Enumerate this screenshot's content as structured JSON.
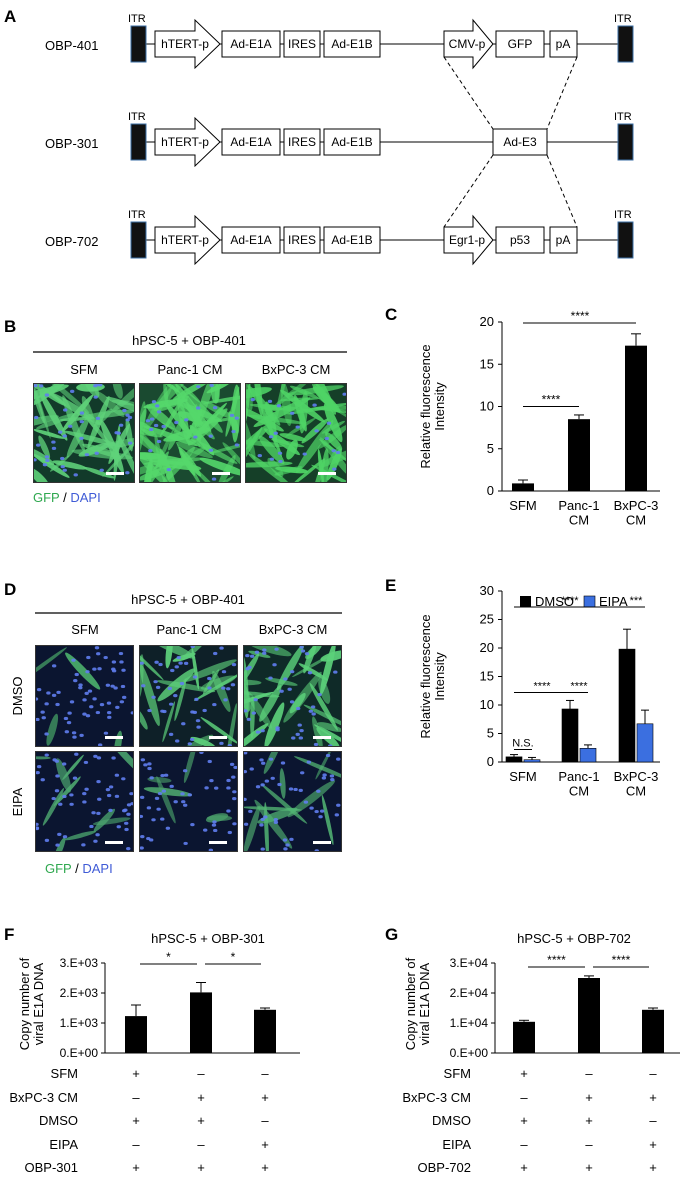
{
  "panel_labels": [
    "A",
    "B",
    "C",
    "D",
    "E",
    "F",
    "G"
  ],
  "panelA": {
    "constructs": [
      {
        "name": "OBP-401",
        "left": [
          "hTERT-p",
          "Ad-E1A",
          "IRES",
          "Ad-E1B"
        ],
        "right": [
          "CMV-p",
          "GFP",
          "pA"
        ]
      },
      {
        "name": "OBP-301",
        "left": [
          "hTERT-p",
          "Ad-E1A",
          "IRES",
          "Ad-E1B"
        ],
        "right": [
          "Ad-E3"
        ]
      },
      {
        "name": "OBP-702",
        "left": [
          "hTERT-p",
          "Ad-E1A",
          "IRES",
          "Ad-E1B"
        ],
        "right": [
          "Egr1-p",
          "p53",
          "pA"
        ]
      }
    ],
    "itr_label": "ITR"
  },
  "panelB": {
    "header": "hPSC-5 + OBP-401",
    "columns": [
      "SFM",
      "Panc-1 CM",
      "BxPC-3 CM"
    ],
    "legend_gfp": "GFP",
    "legend_sep": " / ",
    "legend_dapi": "DAPI"
  },
  "panelD": {
    "header": "hPSC-5 + OBP-401",
    "columns": [
      "SFM",
      "Panc-1 CM",
      "BxPC-3 CM"
    ],
    "rows": [
      "DMSO",
      "EIPA"
    ],
    "legend_gfp": "GFP",
    "legend_sep": " / ",
    "legend_dapi": "DAPI"
  },
  "colors": {
    "gfp": "#2fa84f",
    "dapi": "#3f5bd6",
    "dmso": "#000000",
    "eipa": "#3b6fe0"
  },
  "chart_data": [
    {
      "id": "C",
      "type": "bar",
      "categories": [
        "SFM",
        "Panc-1\nCM",
        "BxPC-3\nCM"
      ],
      "values": [
        0.9,
        8.5,
        17.2
      ],
      "errors": [
        0.4,
        0.5,
        1.4
      ],
      "ylabel": "Relative fluorescence\nIntensity",
      "ylim": [
        0,
        20
      ],
      "yticks": [
        0,
        5,
        10,
        15,
        20
      ],
      "sig": [
        {
          "from": 0,
          "to": 1,
          "text": "****"
        },
        {
          "from": 0,
          "to": 2,
          "text": "****"
        }
      ]
    },
    {
      "id": "E",
      "type": "bar",
      "categories": [
        "SFM",
        "Panc-1\nCM",
        "BxPC-3\nCM"
      ],
      "series": [
        {
          "name": "DMSO",
          "values": [
            0.9,
            9.3,
            19.8
          ],
          "errors": [
            0.4,
            1.5,
            3.5
          ]
        },
        {
          "name": "EIPA",
          "values": [
            0.4,
            2.4,
            6.7
          ],
          "errors": [
            0.4,
            0.6,
            2.4
          ]
        }
      ],
      "ylabel": "Relative fluorescence\nIntensity",
      "ylim": [
        0,
        30
      ],
      "yticks": [
        0,
        5,
        10,
        15,
        20,
        25,
        30
      ],
      "legend": "top",
      "sig": [
        {
          "text": "N.S.",
          "level": 2.2
        },
        {
          "text": "****",
          "level": 12.2
        },
        {
          "text": "****",
          "level": 12.2
        },
        {
          "text": "****",
          "level": 27.2
        },
        {
          "text": "***",
          "level": 27.2
        }
      ]
    },
    {
      "id": "F",
      "type": "bar",
      "title": "hPSC-5 + OBP-301",
      "values": [
        1230,
        2020,
        1440
      ],
      "errors": [
        370,
        330,
        60
      ],
      "ylabel": "Copy number of\nviral E1A DNA",
      "ylim": [
        0,
        3000
      ],
      "yticks": [
        "0.E+00",
        "1.E+03",
        "2.E+03",
        "3.E+03"
      ],
      "sig": [
        {
          "text": "*"
        },
        {
          "text": "*"
        }
      ],
      "conditions": [
        {
          "label": "SFM",
          "marks": [
            "+",
            "–",
            "–"
          ]
        },
        {
          "label": "BxPC-3 CM",
          "marks": [
            "–",
            "+",
            "+"
          ]
        },
        {
          "label": "DMSO",
          "marks": [
            "+",
            "+",
            "–"
          ]
        },
        {
          "label": "EIPA",
          "marks": [
            "–",
            "–",
            "+"
          ]
        },
        {
          "label": "OBP-301",
          "marks": [
            "+",
            "+",
            "+"
          ]
        }
      ]
    },
    {
      "id": "G",
      "type": "bar",
      "title": "hPSC-5 + OBP-702",
      "values": [
        10400,
        25000,
        14400
      ],
      "errors": [
        500,
        700,
        600
      ],
      "ylabel": "Copy number of\nviral E1A DNA",
      "ylim": [
        0,
        30000
      ],
      "yticks": [
        "0.E+00",
        "1.E+04",
        "2.E+04",
        "3.E+04"
      ],
      "sig": [
        {
          "text": "****"
        },
        {
          "text": "****"
        }
      ],
      "conditions": [
        {
          "label": "SFM",
          "marks": [
            "+",
            "–",
            "–"
          ]
        },
        {
          "label": "BxPC-3 CM",
          "marks": [
            "–",
            "+",
            "+"
          ]
        },
        {
          "label": "DMSO",
          "marks": [
            "+",
            "+",
            "–"
          ]
        },
        {
          "label": "EIPA",
          "marks": [
            "–",
            "–",
            "+"
          ]
        },
        {
          "label": "OBP-702",
          "marks": [
            "+",
            "+",
            "+"
          ]
        }
      ]
    }
  ]
}
